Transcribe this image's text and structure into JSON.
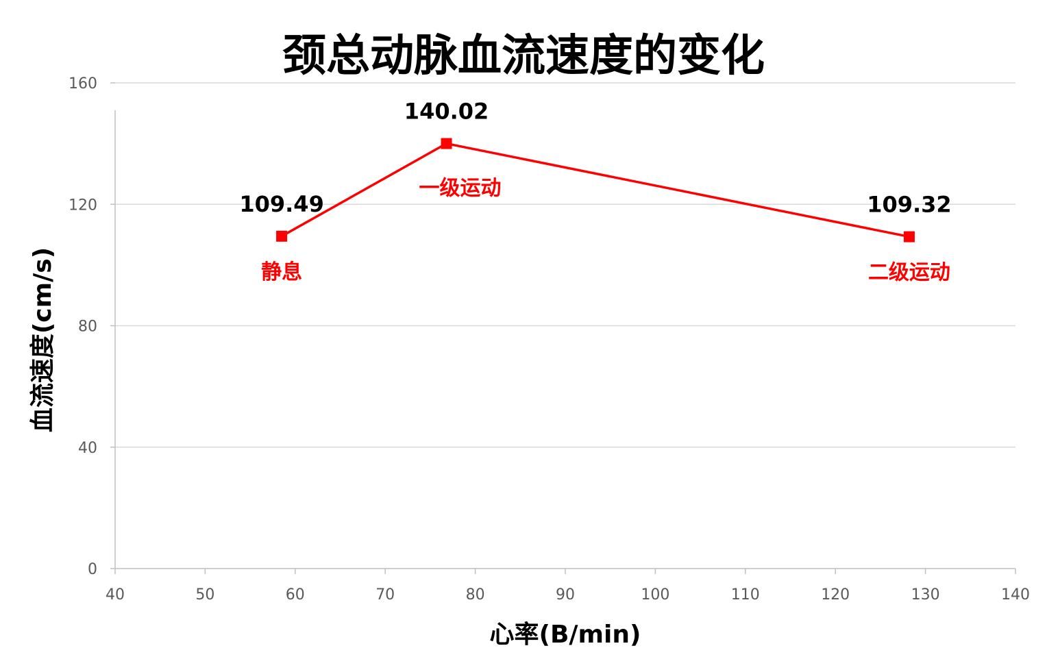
{
  "chart_data": {
    "type": "scatter",
    "title": "颈总动脉血流速度的变化",
    "xlabel": "心率(B/min)",
    "ylabel": "血流速度(cm/s)",
    "xlim": [
      40,
      140
    ],
    "ylim": [
      0,
      160
    ],
    "x_ticks": [
      40,
      50,
      60,
      70,
      80,
      90,
      100,
      110,
      120,
      130,
      140
    ],
    "y_ticks": [
      0,
      40,
      80,
      120,
      160
    ],
    "grid": "horizontal",
    "legend": "none",
    "series": [
      {
        "color": "#ff0000",
        "marker": "square",
        "line": true,
        "points": [
          {
            "x": 58.5,
            "y": 109.49,
            "value_label": "109.49",
            "point_label": "静息"
          },
          {
            "x": 76.8,
            "y": 140.02,
            "value_label": "140.02",
            "point_label": "一级运动"
          },
          {
            "x": 128.2,
            "y": 109.32,
            "value_label": "109.32",
            "point_label": "二级运动"
          }
        ]
      }
    ]
  },
  "colors": {
    "series": "#ff0000",
    "grid": "#d9d9d9",
    "axis": "#bfbfbf",
    "tick_text": "#595959"
  }
}
